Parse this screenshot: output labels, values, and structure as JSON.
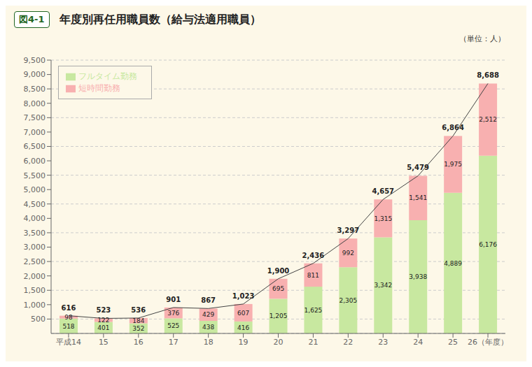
{
  "chart_data": {
    "type": "bar",
    "stacked": true,
    "title": "年度別再任用職員数（給与法適用職員）",
    "annotations": [
      "図4-1",
      "（単位：人）"
    ],
    "categories": [
      "平成14",
      "15",
      "16",
      "17",
      "18",
      "19",
      "20",
      "21",
      "22",
      "23",
      "24",
      "25",
      "26（年度）"
    ],
    "series": [
      {
        "name": "フルタイム勤務",
        "color": "#c8e8a0",
        "values": [
          518,
          401,
          352,
          525,
          438,
          416,
          1205,
          1625,
          2305,
          3342,
          3938,
          4889,
          6176
        ],
        "value_labels": [
          "518",
          "401",
          "352",
          "525",
          "438",
          "416",
          "1,205",
          "1,625",
          "2,305",
          "3,342",
          "3,938",
          "4,889",
          "6,176"
        ]
      },
      {
        "name": "短時間勤務",
        "color": "#f8b0b0",
        "values": [
          98,
          122,
          184,
          376,
          429,
          607,
          695,
          811,
          992,
          1315,
          1541,
          1975,
          2512
        ],
        "value_labels": [
          "98",
          "122",
          "184",
          "376",
          "429",
          "607",
          "695",
          "811",
          "992",
          "1,315",
          "1,541",
          "1,975",
          "2,512"
        ]
      },
      {
        "type": "line",
        "color": "#444444",
        "values": [
          616,
          523,
          536,
          901,
          867,
          1023,
          1900,
          2436,
          3297,
          4657,
          5479,
          6864,
          8688
        ],
        "value_labels": [
          "616",
          "523",
          "536",
          "901",
          "867",
          "1,023",
          "1,900",
          "2,436",
          "3,297",
          "4,657",
          "5,479",
          "6,864",
          "8,688"
        ]
      }
    ],
    "ylim": [
      0,
      9500
    ],
    "yticks": [
      500,
      {
        "value": 1000,
        "label": "1,000"
      },
      {
        "value": 1500,
        "label": "1,500"
      },
      {
        "value": 2000,
        "label": "2,000"
      },
      {
        "value": 2500,
        "label": "2,500"
      },
      {
        "value": 3000,
        "label": "3,000"
      },
      {
        "value": 3500,
        "label": "3,500"
      },
      {
        "value": 4000,
        "label": "4,000"
      },
      {
        "value": 4500,
        "label": "4,500"
      },
      {
        "value": 5000,
        "label": "5,000"
      },
      {
        "value": 5500,
        "label": "5,500"
      },
      {
        "value": 6000,
        "label": "6,000"
      },
      {
        "value": 6500,
        "label": "6,500"
      },
      {
        "value": 7000,
        "label": "7,000"
      },
      {
        "value": 7500,
        "label": "7,500"
      },
      {
        "value": 8000,
        "label": "8,000"
      },
      {
        "value": 8500,
        "label": "8,500"
      },
      {
        "value": 9000,
        "label": "9,000"
      },
      {
        "value": 9500,
        "label": "9,500"
      }
    ],
    "grid": true,
    "legend": "upper left",
    "data_labels": true
  }
}
